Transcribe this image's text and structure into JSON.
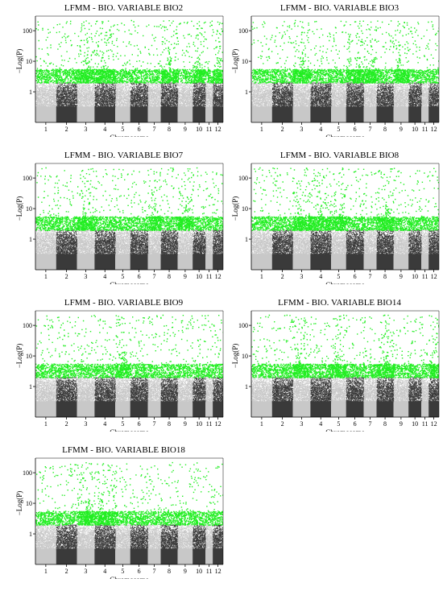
{
  "figure": {
    "ylabel": "−Log(P)",
    "xlabel": "Chromosome"
  },
  "colors": {
    "chrom_light": "#c8c8c8",
    "chrom_dark": "#3a3a3a",
    "significant": "#22ee22",
    "axis": "#000000"
  },
  "chart_data": [
    {
      "type": "scatter",
      "title": "LFMM - BIO. VARIABLE BIO2",
      "xlabel": "Chromosome",
      "ylabel": "−Log(P)",
      "categories": [
        "1",
        "2",
        "3",
        "4",
        "5",
        "6",
        "7",
        "8",
        "9",
        "10",
        "11",
        "12"
      ],
      "chromosome_widths": [
        1.0,
        1.0,
        0.85,
        1.0,
        0.72,
        0.85,
        0.62,
        0.82,
        0.72,
        0.62,
        0.35,
        0.5
      ],
      "y_scale": "log",
      "yticks": [
        1,
        10,
        100
      ],
      "ylim": [
        0.1,
        300
      ],
      "significance_threshold": 2,
      "significant_peaks": [
        "3",
        "4",
        "8",
        "10",
        "12"
      ],
      "legend": "none",
      "grid": false
    },
    {
      "type": "scatter",
      "title": "LFMM - BIO. VARIABLE BIO3",
      "xlabel": "Chromosome",
      "ylabel": "−Log(P)",
      "categories": [
        "1",
        "2",
        "3",
        "4",
        "5",
        "6",
        "7",
        "8",
        "9",
        "10",
        "11",
        "12"
      ],
      "chromosome_widths": [
        1.0,
        1.0,
        0.85,
        1.0,
        0.72,
        0.85,
        0.62,
        0.82,
        0.72,
        0.62,
        0.35,
        0.5
      ],
      "y_scale": "log",
      "yticks": [
        1,
        10,
        100
      ],
      "ylim": [
        0.1,
        300
      ],
      "significance_threshold": 2,
      "significant_peaks": [
        "3",
        "6",
        "7",
        "9"
      ],
      "legend": "none",
      "grid": false
    },
    {
      "type": "scatter",
      "title": "LFMM - BIO. VARIABLE BIO7",
      "xlabel": "Chromosome",
      "ylabel": "−Log(P)",
      "categories": [
        "1",
        "2",
        "3",
        "4",
        "5",
        "6",
        "7",
        "8",
        "9",
        "10",
        "11",
        "12"
      ],
      "chromosome_widths": [
        1.0,
        1.0,
        0.85,
        1.0,
        0.72,
        0.85,
        0.62,
        0.82,
        0.72,
        0.62,
        0.35,
        0.5
      ],
      "y_scale": "log",
      "yticks": [
        1,
        10,
        100
      ],
      "ylim": [
        0.1,
        300
      ],
      "significance_threshold": 2,
      "significant_peaks": [
        "3",
        "7",
        "9"
      ],
      "legend": "none",
      "grid": false
    },
    {
      "type": "scatter",
      "title": "LFMM - BIO. VARIABLE BIO8",
      "xlabel": "Chromosome",
      "ylabel": "−Log(P)",
      "categories": [
        "1",
        "2",
        "3",
        "4",
        "5",
        "6",
        "7",
        "8",
        "9",
        "10",
        "11",
        "12"
      ],
      "chromosome_widths": [
        1.0,
        1.0,
        0.85,
        1.0,
        0.72,
        0.85,
        0.62,
        0.82,
        0.72,
        0.62,
        0.35,
        0.5
      ],
      "y_scale": "log",
      "yticks": [
        1,
        10,
        100
      ],
      "ylim": [
        0.1,
        300
      ],
      "significance_threshold": 2,
      "significant_peaks": [
        "3",
        "4",
        "5",
        "8"
      ],
      "legend": "none",
      "grid": false
    },
    {
      "type": "scatter",
      "title": "LFMM - BIO. VARIABLE BIO9",
      "xlabel": "Chromosome",
      "ylabel": "−Log(P)",
      "categories": [
        "1",
        "2",
        "3",
        "4",
        "5",
        "6",
        "7",
        "8",
        "9",
        "10",
        "11",
        "12"
      ],
      "chromosome_widths": [
        1.0,
        1.0,
        0.85,
        1.0,
        0.72,
        0.85,
        0.62,
        0.82,
        0.72,
        0.62,
        0.35,
        0.5
      ],
      "y_scale": "log",
      "yticks": [
        1,
        10,
        100
      ],
      "ylim": [
        0.1,
        300
      ],
      "significance_threshold": 2,
      "significant_peaks": [
        "5"
      ],
      "legend": "none",
      "grid": false
    },
    {
      "type": "scatter",
      "title": "LFMM - BIO. VARIABLE BIO14",
      "xlabel": "Chromosome",
      "ylabel": "−Log(P)",
      "categories": [
        "1",
        "2",
        "3",
        "4",
        "5",
        "6",
        "7",
        "8",
        "9",
        "10",
        "11",
        "12"
      ],
      "chromosome_widths": [
        1.0,
        1.0,
        0.85,
        1.0,
        0.72,
        0.85,
        0.62,
        0.82,
        0.72,
        0.62,
        0.35,
        0.5
      ],
      "y_scale": "log",
      "yticks": [
        1,
        10,
        100
      ],
      "ylim": [
        0.1,
        300
      ],
      "significance_threshold": 2,
      "significant_peaks": [
        "3",
        "5",
        "8",
        "12"
      ],
      "legend": "none",
      "grid": false
    },
    {
      "type": "scatter",
      "title": "LFMM - BIO. VARIABLE BIO18",
      "xlabel": "Chromosome",
      "ylabel": "−Log(P)",
      "categories": [
        "1",
        "2",
        "3",
        "4",
        "5",
        "6",
        "7",
        "8",
        "9",
        "10",
        "11",
        "12"
      ],
      "chromosome_widths": [
        1.0,
        1.0,
        0.85,
        1.0,
        0.72,
        0.85,
        0.62,
        0.82,
        0.72,
        0.62,
        0.35,
        0.5
      ],
      "y_scale": "log",
      "yticks": [
        1,
        10,
        100
      ],
      "ylim": [
        0.1,
        300
      ],
      "significance_threshold": 2,
      "significant_peaks": [
        "3",
        "4"
      ],
      "legend": "none",
      "grid": false
    }
  ]
}
